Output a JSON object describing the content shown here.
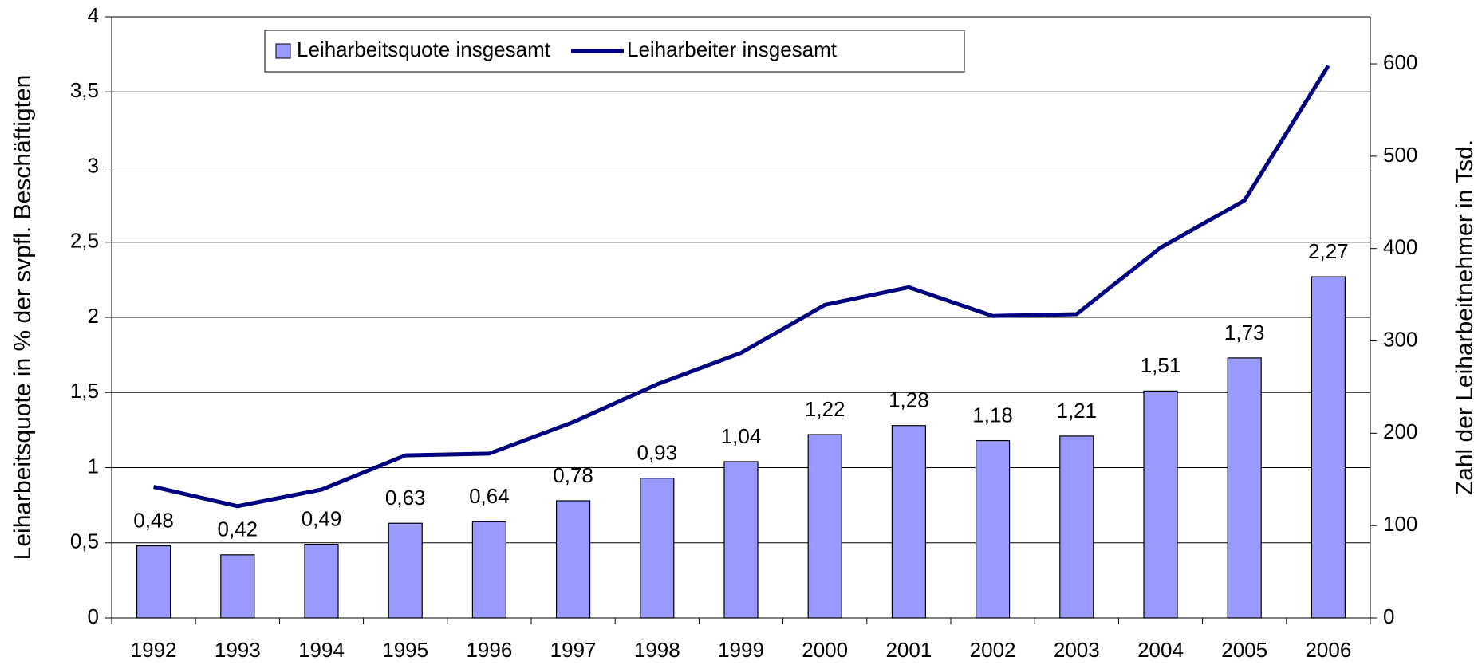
{
  "chart_data": {
    "type": "bar_line",
    "y_label": "Leiharbeitsquote in % der svpfl. Beschäftigten",
    "y2_label": "Zahl der Leiharbeitnehmer in Tsd.",
    "categories": [
      "1992",
      "1993",
      "1994",
      "1995",
      "1996",
      "1997",
      "1998",
      "1999",
      "2000",
      "2001",
      "2002",
      "2003",
      "2004",
      "2005",
      "2006"
    ],
    "series": [
      {
        "name": "Leiharbeitsquote insgesamt",
        "type": "bar",
        "color": "#9999ff",
        "values": [
          0.48,
          0.42,
          0.49,
          0.63,
          0.64,
          0.78,
          0.93,
          1.04,
          1.22,
          1.28,
          1.18,
          1.21,
          1.51,
          1.73,
          2.27
        ],
        "value_labels": [
          "0,48",
          "0,42",
          "0,49",
          "0,63",
          "0,64",
          "0,78",
          "0,93",
          "1,04",
          "1,22",
          "1,28",
          "1,18",
          "1,21",
          "1,51",
          "1,73",
          "2,27"
        ]
      },
      {
        "name": "Leiharbeiter insgesamt",
        "type": "line",
        "color": "#000080",
        "axis": "y2",
        "values": [
          142,
          121,
          139,
          176,
          178,
          212,
          253,
          287,
          339,
          358,
          327,
          329,
          401,
          452,
          598
        ]
      }
    ],
    "ylim": [
      0,
      4
    ],
    "yticks": [
      0,
      {
        "value": 0.5,
        "label": "0,5"
      },
      1,
      {
        "value": 1.5,
        "label": "1,5"
      },
      2,
      {
        "value": 2.5,
        "label": "2,5"
      },
      3,
      {
        "value": 3.5,
        "label": "3,5"
      },
      4
    ],
    "y2lim": [
      0,
      651
    ],
    "y2ticks": [
      0,
      100,
      200,
      300,
      400,
      500,
      600
    ],
    "grid": true,
    "legend": "top"
  }
}
